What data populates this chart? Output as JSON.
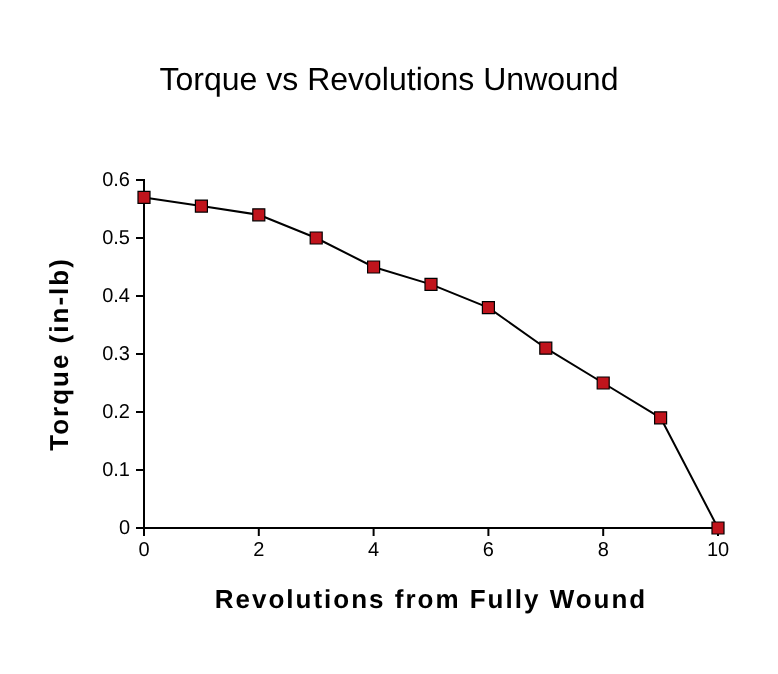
{
  "chart_data": {
    "type": "line",
    "title": "Torque vs Revolutions Unwound",
    "xlabel": "Revolutions from Fully Wound",
    "ylabel": "Torque (in-lb)",
    "x": [
      0,
      1,
      2,
      3,
      4,
      5,
      6,
      7,
      8,
      9,
      10
    ],
    "series": [
      {
        "color": "#c0141c",
        "values": [
          0.57,
          0.555,
          0.54,
          0.5,
          0.45,
          0.42,
          0.38,
          0.31,
          0.25,
          0.19,
          0
        ]
      }
    ],
    "xlim": [
      0,
      10
    ],
    "xticks": [
      0,
      2,
      4,
      6,
      8,
      10
    ],
    "ylim": [
      0,
      0.6
    ],
    "yticks": [
      0,
      {
        "value": 0.1,
        "label": "0.1"
      },
      {
        "value": 0.2,
        "label": "0.2"
      },
      {
        "value": 0.3,
        "label": "0.3"
      },
      {
        "value": 0.4,
        "label": "0.4"
      },
      {
        "value": 0.5,
        "label": "0.5"
      },
      {
        "value": 0.6,
        "label": "0.6"
      }
    ],
    "marker": "square",
    "grid": false
  }
}
